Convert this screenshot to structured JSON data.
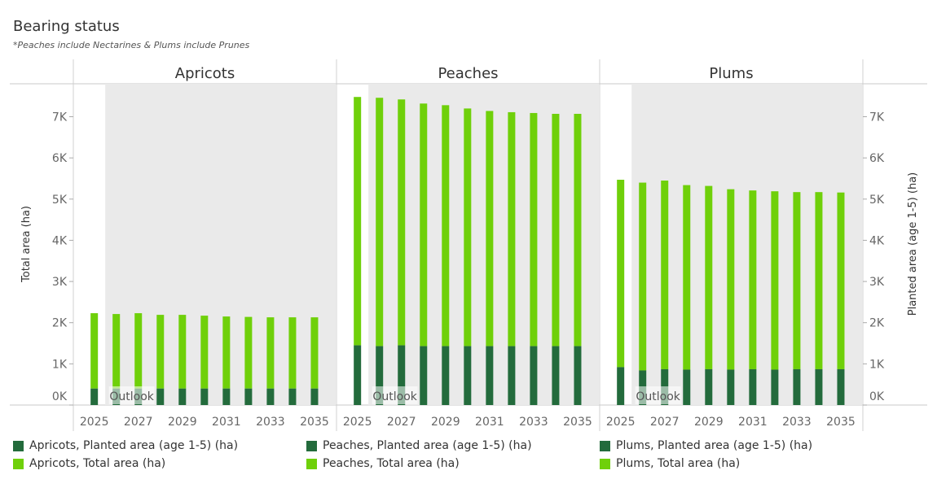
{
  "title": "Bearing status",
  "subtitle": "*Peaches include Nectarines & Plums include Prunes",
  "colors": {
    "planted": "#236b3c",
    "total": "#6fd00a",
    "outlook_bg": "#eaeaea"
  },
  "chart_data": {
    "type": "bar",
    "stacked": true,
    "panels": [
      "Apricots",
      "Peaches",
      "Plums"
    ],
    "x": [
      "2025",
      "2026",
      "2027",
      "2028",
      "2029",
      "2030",
      "2031",
      "2032",
      "2033",
      "2034",
      "2035"
    ],
    "x_tick_labels": [
      "2025",
      "2027",
      "2029",
      "2031",
      "2033",
      "2035"
    ],
    "ylabel_left": "Total area (ha)",
    "ylabel_right": "Planted area (age 1-5) (ha)",
    "ylim": [
      0,
      7800
    ],
    "y_ticks": [
      "0K",
      "1K",
      "2K",
      "3K",
      "4K",
      "5K",
      "6K",
      "7K"
    ],
    "outlook_label": "Outlook",
    "outlook_start": "2026",
    "series": [
      {
        "name": "Apricots, Planted area (age 1-5) (ha)",
        "panel": "Apricots",
        "kind": "planted",
        "values": [
          400,
          400,
          400,
          400,
          400,
          400,
          400,
          400,
          400,
          400,
          400
        ]
      },
      {
        "name": "Apricots, Total area (ha)",
        "panel": "Apricots",
        "kind": "total",
        "values": [
          2230,
          2210,
          2230,
          2190,
          2190,
          2170,
          2150,
          2140,
          2130,
          2130,
          2130
        ]
      },
      {
        "name": "Peaches, Planted area (age 1-5) (ha)",
        "panel": "Peaches",
        "kind": "planted",
        "values": [
          1450,
          1430,
          1450,
          1430,
          1430,
          1430,
          1430,
          1430,
          1430,
          1430,
          1430
        ]
      },
      {
        "name": "Peaches, Total area (ha)",
        "panel": "Peaches",
        "kind": "total",
        "values": [
          7480,
          7460,
          7420,
          7320,
          7280,
          7200,
          7140,
          7110,
          7090,
          7070,
          7070
        ]
      },
      {
        "name": "Plums, Planted area (age 1-5) (ha)",
        "panel": "Plums",
        "kind": "planted",
        "values": [
          920,
          840,
          870,
          860,
          870,
          860,
          870,
          860,
          870,
          870,
          870
        ]
      },
      {
        "name": "Plums, Total area (ha)",
        "panel": "Plums",
        "kind": "total",
        "values": [
          5470,
          5400,
          5450,
          5340,
          5320,
          5240,
          5210,
          5190,
          5170,
          5170,
          5160
        ]
      }
    ]
  },
  "legend": [
    {
      "label": "Apricots, Planted area (age 1-5) (ha)",
      "kind": "planted"
    },
    {
      "label": "Apricots, Total area (ha)",
      "kind": "total"
    },
    {
      "label": "Peaches, Planted area (age 1-5) (ha)",
      "kind": "planted"
    },
    {
      "label": "Peaches, Total area (ha)",
      "kind": "total"
    },
    {
      "label": "Plums, Planted area (age 1-5) (ha)",
      "kind": "planted"
    },
    {
      "label": "Plums, Total area (ha)",
      "kind": "total"
    }
  ]
}
